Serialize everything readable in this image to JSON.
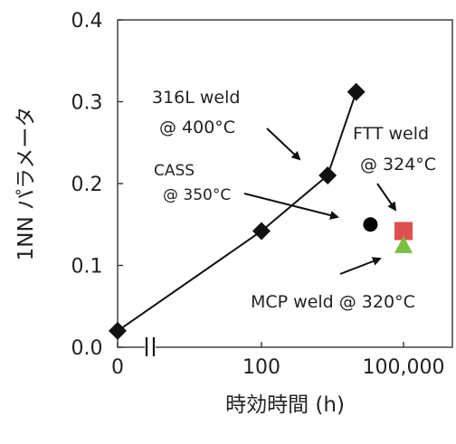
{
  "chart_data": {
    "type": "scatter",
    "xlabel": "時効時間 (h)",
    "ylabel": "1NN パラメータ",
    "x_ticks": [
      "0",
      "100",
      "100,000"
    ],
    "y_ticks": [
      "0.0",
      "0.1",
      "0.2",
      "0.3",
      "0.4"
    ],
    "ylim": [
      0,
      0.4
    ],
    "x_scale": "log with axis break",
    "grid": false,
    "series": [
      {
        "name": "316L weld @ 400°C",
        "marker": "diamond",
        "color": "#111111",
        "line": true,
        "points": [
          {
            "x": 0,
            "y": 0.02
          },
          {
            "x": 100,
            "y": 0.142
          },
          {
            "x": 2500,
            "y": 0.21
          },
          {
            "x": 10000,
            "y": 0.312
          }
        ]
      },
      {
        "name": "CASS @ 350°C",
        "marker": "circle",
        "color": "#000000",
        "line": false,
        "points": [
          {
            "x": 20000,
            "y": 0.15
          }
        ]
      },
      {
        "name": "FTT weld @ 324°C",
        "marker": "square",
        "color": "#e05050",
        "line": false,
        "points": [
          {
            "x": 100000,
            "y": 0.142
          }
        ]
      },
      {
        "name": "MCP weld @ 320°C",
        "marker": "triangle",
        "color": "#7bc043",
        "line": false,
        "points": [
          {
            "x": 100000,
            "y": 0.125
          }
        ]
      }
    ],
    "annotations": {
      "weld316": [
        "316L weld",
        "@ 400°C"
      ],
      "cass": [
        "CASS",
        "@ 350°C"
      ],
      "ftt": [
        "FTT weld",
        "@ 324°C"
      ],
      "mcp": [
        "MCP weld @ 320°C"
      ]
    }
  }
}
